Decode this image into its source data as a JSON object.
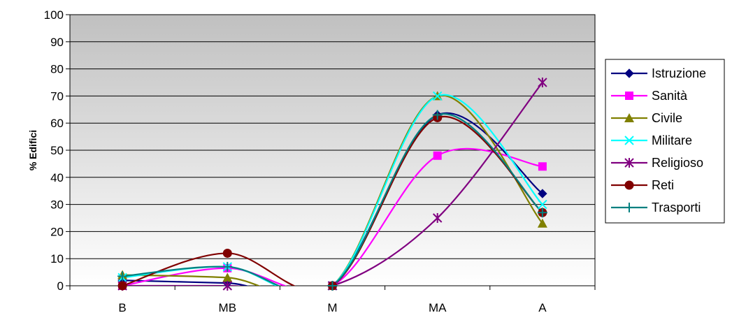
{
  "chart_data": {
    "type": "line",
    "title": "",
    "xlabel": "",
    "ylabel": "% Edifici",
    "categories": [
      "B",
      "MB",
      "M",
      "MA",
      "A"
    ],
    "ylim": [
      0,
      100
    ],
    "yticks": [
      0,
      10,
      20,
      30,
      40,
      50,
      60,
      70,
      80,
      90,
      100
    ],
    "grid": true,
    "smooth": true,
    "legend_position": "right",
    "series": [
      {
        "name": "Istruzione",
        "values": [
          2,
          1,
          0,
          63,
          34
        ],
        "color": "#000080",
        "marker": "diamond"
      },
      {
        "name": "Sanità",
        "values": [
          0,
          6.5,
          0,
          48,
          44
        ],
        "color": "#ff00ff",
        "marker": "square"
      },
      {
        "name": "Civile",
        "values": [
          4,
          3,
          0,
          70,
          23
        ],
        "color": "#808000",
        "marker": "triangle"
      },
      {
        "name": "Militare",
        "values": [
          3,
          7,
          0,
          70,
          30
        ],
        "color": "#00ffff",
        "marker": "x"
      },
      {
        "name": "Religioso",
        "values": [
          0,
          0,
          0,
          25,
          75
        ],
        "color": "#800080",
        "marker": "asterisk"
      },
      {
        "name": "Reti",
        "values": [
          0,
          12,
          0,
          62,
          27
        ],
        "color": "#800000",
        "marker": "circle"
      },
      {
        "name": "Trasporti",
        "values": [
          3.5,
          7,
          0,
          63,
          27
        ],
        "color": "#008080",
        "marker": "plus"
      }
    ],
    "plot_background": [
      "#ffffff",
      "#c0c0c0"
    ]
  }
}
